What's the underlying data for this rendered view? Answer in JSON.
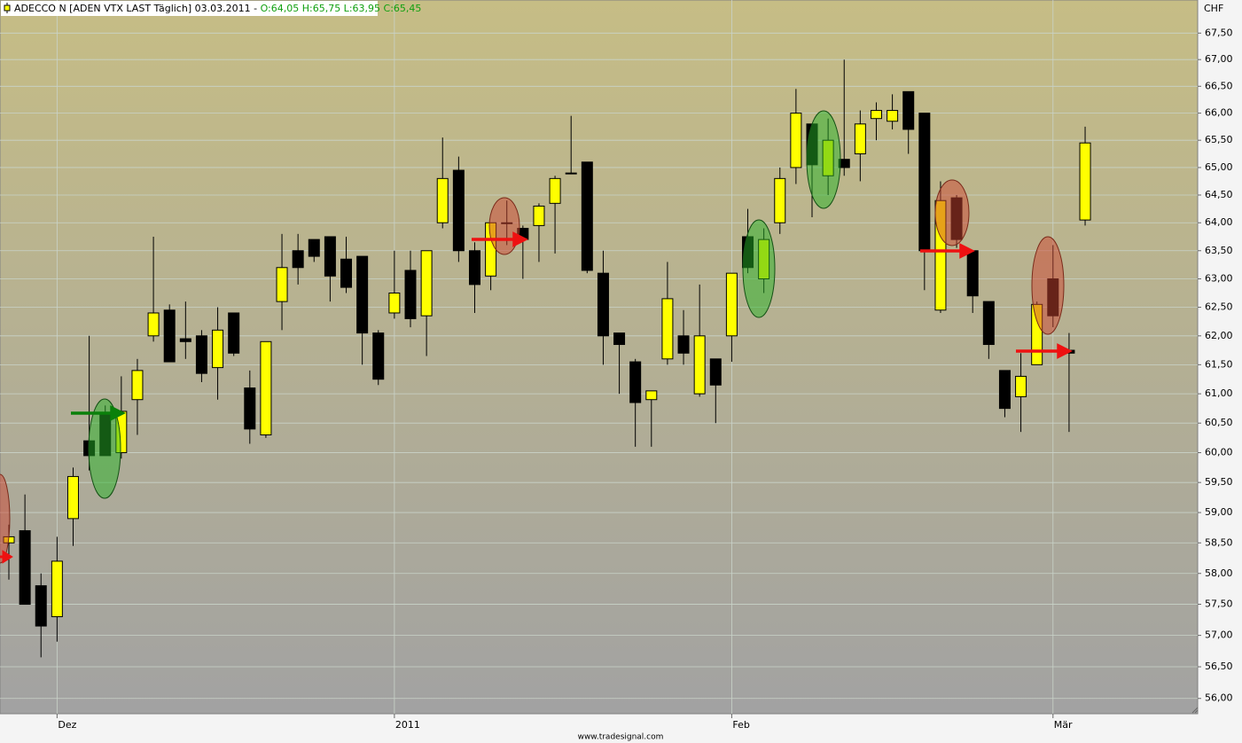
{
  "chart_data": {
    "type": "candlestick",
    "title": "ADECCO N [ADEN VTX LAST Täglich] 03.03.2011 -",
    "subtitle": "O:64,05 H:65,75 L:63,95 C:65,45",
    "y_label": "CHF",
    "footer": "www.tradesignal.com",
    "categories": [
      null,
      null,
      null,
      "Dez",
      null,
      null,
      null,
      null,
      null,
      null,
      null,
      null,
      null,
      null,
      null,
      null,
      null,
      null,
      null,
      null,
      null,
      null,
      null,
      null,
      "2011",
      null,
      null,
      null,
      null,
      null,
      null,
      null,
      null,
      null,
      null,
      null,
      null,
      null,
      null,
      null,
      null,
      null,
      null,
      null,
      null,
      "Feb",
      null,
      null,
      null,
      null,
      null,
      null,
      null,
      null,
      null,
      null,
      null,
      null,
      null,
      null,
      null,
      null,
      null,
      null,
      null,
      "Mär",
      null,
      null
    ],
    "open": [
      58.5,
      58.7,
      57.8,
      57.3,
      58.9,
      60.2,
      60.65,
      60.0,
      60.9,
      62.0,
      62.45,
      61.95,
      62.0,
      61.45,
      62.4,
      61.1,
      60.3,
      62.6,
      63.5,
      63.7,
      63.75,
      63.35,
      63.4,
      62.05,
      62.4,
      63.15,
      62.35,
      64.0,
      64.95,
      63.5,
      63.05,
      64.0,
      63.9,
      63.95,
      64.35,
      64.9,
      65.1,
      63.1,
      62.05,
      61.55,
      60.9,
      61.6,
      62.0,
      61.0,
      61.6,
      62.0,
      63.75,
      63.0,
      64.0,
      65.0,
      65.8,
      64.85,
      65.15,
      65.25,
      65.9,
      65.85,
      66.4,
      66.0,
      62.45,
      64.45,
      63.5,
      62.6,
      61.4,
      60.95,
      61.5,
      63.0,
      61.75,
      64.05
    ],
    "high": [
      58.8,
      59.3,
      58.0,
      58.6,
      59.75,
      62.0,
      60.8,
      61.3,
      61.6,
      63.75,
      62.55,
      62.6,
      62.1,
      62.5,
      62.4,
      61.4,
      61.9,
      63.8,
      63.8,
      63.7,
      63.75,
      63.75,
      63.4,
      62.1,
      63.5,
      63.5,
      63.5,
      65.55,
      65.2,
      63.65,
      64.0,
      64.4,
      63.95,
      64.35,
      64.85,
      65.95,
      65.1,
      63.5,
      62.05,
      61.6,
      61.05,
      63.3,
      62.45,
      62.9,
      61.6,
      63.1,
      64.25,
      63.9,
      65.0,
      66.45,
      65.8,
      65.9,
      67.0,
      66.05,
      66.2,
      66.35,
      66.4,
      66.0,
      64.75,
      64.5,
      63.5,
      62.6,
      61.4,
      61.7,
      62.6,
      63.6,
      62.05,
      65.75
    ],
    "low": [
      57.9,
      57.5,
      56.65,
      56.9,
      58.45,
      59.7,
      59.95,
      59.9,
      60.3,
      61.9,
      61.55,
      61.6,
      61.2,
      60.9,
      61.65,
      60.15,
      60.25,
      62.1,
      62.9,
      63.3,
      62.6,
      62.75,
      61.5,
      61.15,
      62.3,
      62.15,
      61.65,
      63.9,
      63.3,
      62.4,
      62.8,
      63.6,
      63.0,
      63.3,
      63.45,
      64.9,
      63.1,
      61.5,
      61.0,
      60.1,
      60.1,
      61.5,
      61.5,
      60.95,
      60.5,
      61.55,
      63.1,
      62.75,
      63.8,
      64.7,
      64.1,
      64.5,
      64.85,
      64.75,
      65.5,
      65.7,
      65.25,
      62.8,
      62.4,
      63.55,
      62.4,
      61.6,
      60.6,
      60.35,
      61.5,
      62.15,
      60.35,
      63.95
    ],
    "close": [
      58.6,
      57.5,
      57.15,
      58.2,
      59.6,
      59.95,
      59.95,
      60.7,
      61.4,
      62.4,
      61.55,
      61.9,
      61.35,
      62.1,
      61.7,
      60.4,
      61.9,
      63.2,
      63.2,
      63.4,
      63.05,
      62.85,
      62.05,
      61.25,
      62.75,
      62.3,
      63.5,
      64.8,
      63.5,
      62.9,
      64.0,
      64.0,
      63.7,
      64.3,
      64.8,
      64.9,
      63.15,
      62.0,
      61.85,
      60.85,
      61.05,
      62.65,
      61.7,
      62.0,
      61.15,
      63.1,
      63.2,
      63.7,
      64.8,
      66.0,
      65.05,
      65.5,
      65.0,
      65.8,
      66.05,
      66.05,
      65.7,
      63.5,
      64.4,
      63.7,
      62.7,
      61.85,
      60.75,
      61.3,
      62.55,
      62.35,
      61.7,
      65.45
    ],
    "up_color": "#ffff00",
    "down_color": "#000000",
    "log_scale": true,
    "grid": true,
    "ylim": [
      55.76,
      68.13
    ],
    "yticks": [
      {
        "value": 56,
        "label": "56,00"
      },
      {
        "value": 56.5,
        "label": "56,50"
      },
      {
        "value": 57,
        "label": "57,00"
      },
      {
        "value": 57.5,
        "label": "57,50"
      },
      {
        "value": 58,
        "label": "58,00"
      },
      {
        "value": 58.5,
        "label": "58,50"
      },
      {
        "value": 59,
        "label": "59,00"
      },
      {
        "value": 59.5,
        "label": "59,50"
      },
      {
        "value": 60,
        "label": "60,00"
      },
      {
        "value": 60.5,
        "label": "60,50"
      },
      {
        "value": 61,
        "label": "61,00"
      },
      {
        "value": 61.5,
        "label": "61,50"
      },
      {
        "value": 62,
        "label": "62,00"
      },
      {
        "value": 62.5,
        "label": "62,50"
      },
      {
        "value": 63,
        "label": "63,00"
      },
      {
        "value": 63.5,
        "label": "63,50"
      },
      {
        "value": 64,
        "label": "64,00"
      },
      {
        "value": 64.5,
        "label": "64,50"
      },
      {
        "value": 65,
        "label": "65,00"
      },
      {
        "value": 65.5,
        "label": "65,50"
      },
      {
        "value": 66,
        "label": "66,00"
      },
      {
        "value": 66.5,
        "label": "66,50"
      },
      {
        "value": 67,
        "label": "67,00"
      },
      {
        "value": 67.5,
        "label": "67,50"
      }
    ]
  }
}
